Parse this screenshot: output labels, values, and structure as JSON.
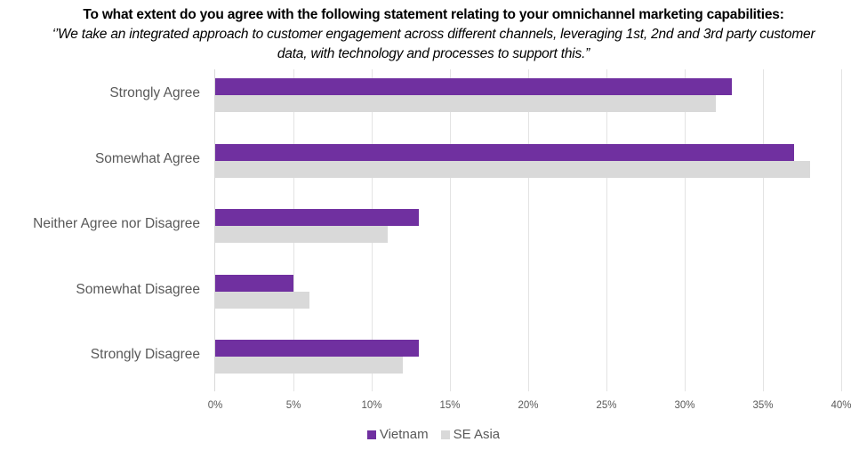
{
  "title": {
    "line1": "To what extent do you agree with the following statement relating to your omnichannel marketing capabilities:",
    "line2": "‘’We take an integrated approach to customer engagement across different channels, leveraging 1st, 2nd and 3rd party customer data, with technology and processes to support this.”"
  },
  "colors": {
    "vietnam": "#7030A0",
    "se_asia": "#D9D9D9",
    "grid": "#E3E3E3",
    "text": "#595959"
  },
  "legend": [
    {
      "label": "Vietnam",
      "color": "#7030A0"
    },
    {
      "label": "SE Asia",
      "color": "#D9D9D9"
    }
  ],
  "axis": {
    "ticks": [
      "0%",
      "5%",
      "10%",
      "15%",
      "20%",
      "25%",
      "30%",
      "35%",
      "40%"
    ]
  },
  "chart_data": {
    "type": "bar",
    "orientation": "horizontal",
    "title": "To what extent do you agree with the following statement relating to your omnichannel marketing capabilities: ‘’We take an integrated approach to customer engagement across different channels, leveraging 1st, 2nd and 3rd party customer data, with technology and processes to support this.”",
    "categories": [
      "Strongly Agree",
      "Somewhat Agree",
      "Neither Agree nor Disagree",
      "Somewhat Disagree",
      "Strongly Disagree"
    ],
    "series": [
      {
        "name": "Vietnam",
        "color": "#7030A0",
        "values": [
          33,
          37,
          13,
          5,
          13
        ]
      },
      {
        "name": "SE Asia",
        "color": "#D9D9D9",
        "values": [
          32,
          38,
          11,
          6,
          12
        ]
      }
    ],
    "xlabel": "",
    "ylabel": "",
    "xlim": [
      0,
      40
    ],
    "tick_format": "percent",
    "ticks": [
      0,
      5,
      10,
      15,
      20,
      25,
      30,
      35,
      40
    ],
    "grid": "vertical",
    "legend_position": "bottom"
  }
}
